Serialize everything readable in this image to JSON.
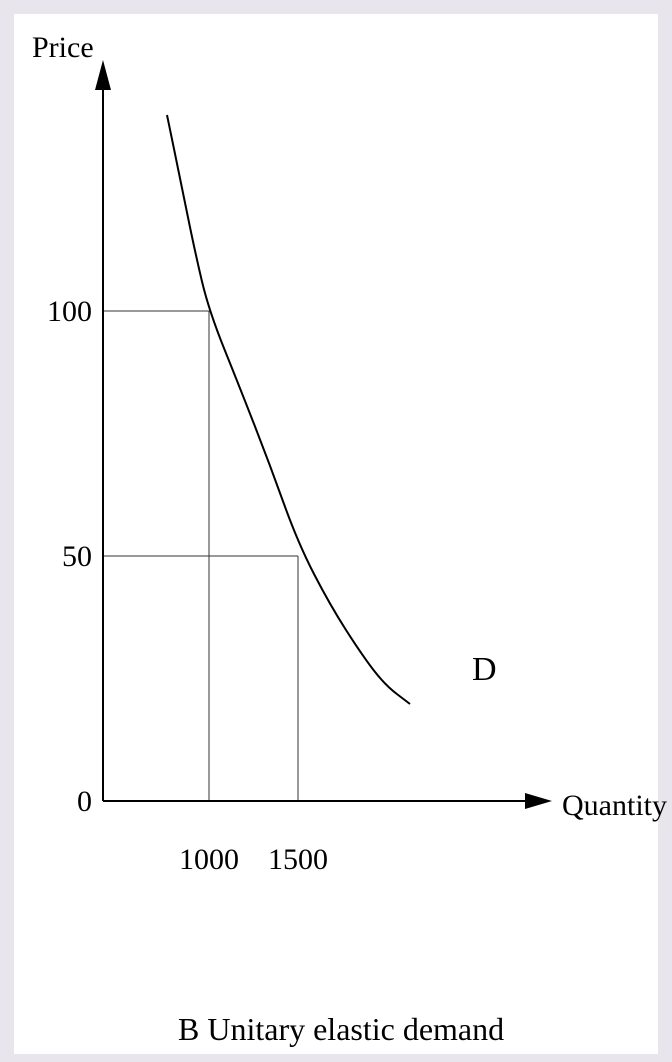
{
  "chart_data": {
    "type": "line",
    "title": "B  Unitary elastic demand",
    "xlabel": "Quantity",
    "ylabel": "Price",
    "xlim": [
      0,
      2300
    ],
    "ylim": [
      0,
      135
    ],
    "x_ticks": [
      {
        "value": 1000,
        "label": "1000"
      },
      {
        "value": 1500,
        "label": "1500"
      }
    ],
    "y_ticks": [
      {
        "value": 0,
        "label": "0"
      },
      {
        "value": 50,
        "label": "50"
      },
      {
        "value": 100,
        "label": "100"
      }
    ],
    "series": [
      {
        "name": "D",
        "x": [
          400,
          550,
          700,
          850,
          1000,
          1250,
          1500,
          1750,
          1950,
          2100
        ],
        "y": [
          133,
          122,
          108,
          94,
          100,
          74,
          50,
          30,
          20,
          16
        ]
      }
    ],
    "reference_points": [
      {
        "x": 1000,
        "y": 100
      },
      {
        "x": 1500,
        "y": 50
      }
    ],
    "grid": false,
    "legend": "none"
  }
}
